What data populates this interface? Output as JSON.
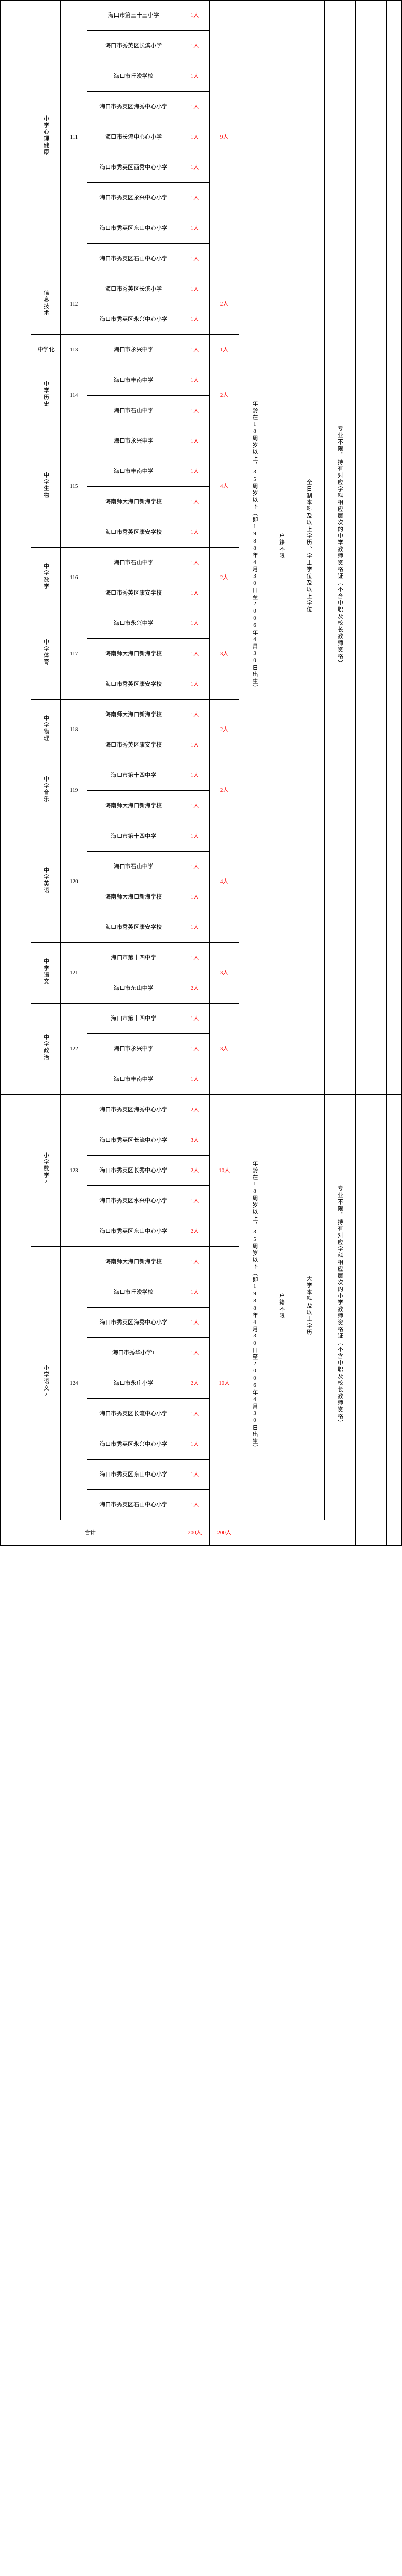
{
  "unit1": {
    "subj_xljk": {
      "label": "小学心理健康",
      "code": "111",
      "count": "9人",
      "schools": [
        {
          "name": "海口市第三十三小学",
          "n": "1人"
        },
        {
          "name": "海口市秀英区长滨小学",
          "n": "1人"
        },
        {
          "name": "海口市丘浚学校",
          "n": "1人"
        },
        {
          "name": "海口市秀英区海秀中心小学",
          "n": "1人"
        },
        {
          "name": "海口市长流中心心小学",
          "n": "1人"
        },
        {
          "name": "海口市秀英区西秀中心小学",
          "n": "1人"
        },
        {
          "name": "海口市秀英区永兴中心小学",
          "n": "1人"
        },
        {
          "name": "海口市秀英区东山中心小学",
          "n": "1人"
        },
        {
          "name": "海口市秀英区石山中心小学",
          "n": "1人"
        }
      ]
    },
    "subj_xxjs": {
      "label": "信息技术",
      "code": "112",
      "count": "2人",
      "schools": [
        {
          "name": "海口市秀英区长滨小学",
          "n": "1人"
        },
        {
          "name": "海口市秀英区永兴中心小学",
          "n": "1人"
        }
      ]
    },
    "subj_zxhx": {
      "label": "中学化",
      "code": "113",
      "count": "1人",
      "schools": [
        {
          "name": "海口市永兴中学",
          "n": "1人"
        }
      ]
    },
    "subj_zxls": {
      "label": "中学历史",
      "code": "114",
      "count": "2人",
      "schools": [
        {
          "name": "海口市丰南中学",
          "n": "1人"
        },
        {
          "name": "海口市石山中学",
          "n": "1人"
        }
      ]
    },
    "subj_zxsw": {
      "label": "中学生物",
      "code": "115",
      "count": "4人",
      "schools": [
        {
          "name": "海口市永兴中学",
          "n": "1人"
        },
        {
          "name": "海口市丰南中学",
          "n": "1人"
        },
        {
          "name": "海南师大海口新海学校",
          "n": "1人"
        },
        {
          "name": "海口市秀英区康安学校",
          "n": "1人"
        }
      ]
    },
    "subj_zxsx": {
      "label": "中学数学",
      "code": "116",
      "count": "2人",
      "schools": [
        {
          "name": "海口市石山中学",
          "n": "1人"
        },
        {
          "name": "海口市秀英区康安学校",
          "n": "1人"
        }
      ]
    },
    "subj_zxty": {
      "label": "中学体育",
      "code": "117",
      "count": "3人",
      "schools": [
        {
          "name": "海口市永兴中学",
          "n": "1人"
        },
        {
          "name": "海南师大海口新海学校",
          "n": "1人"
        },
        {
          "name": "海口市秀英区康安学校",
          "n": "1人"
        }
      ]
    },
    "subj_zxwl": {
      "label": "中学物理",
      "code": "118",
      "count": "2人",
      "schools": [
        {
          "name": "海南师大海口新海学校",
          "n": "1人"
        },
        {
          "name": "海口市秀英区康安学校",
          "n": "1人"
        }
      ]
    },
    "subj_zxyy": {
      "label": "中学音乐",
      "code": "119",
      "count": "2人",
      "schools": [
        {
          "name": "海口市第十四中学",
          "n": "1人"
        },
        {
          "name": "海南师大海口新海学校",
          "n": "1人"
        }
      ]
    },
    "subj_zxen": {
      "label": "中学英语",
      "code": "120",
      "count": "4人",
      "schools": [
        {
          "name": "海口市第十四中学",
          "n": "1人"
        },
        {
          "name": "海口市石山中学",
          "n": "1人"
        },
        {
          "name": "海南师大海口新海学校",
          "n": "1人"
        },
        {
          "name": "海口市秀英区康安学校",
          "n": "1人"
        }
      ]
    },
    "subj_zxyw": {
      "label": "中学语文",
      "code": "121",
      "count": "3人",
      "schools": [
        {
          "name": "海口市第十四中学",
          "n": "1人"
        },
        {
          "name": "海口市东山中学",
          "n": "2人"
        }
      ]
    },
    "subj_zxzz": {
      "label": "中学政治",
      "code": "122",
      "count": "3人",
      "schools": [
        {
          "name": "海口市第十四中学",
          "n": "1人"
        },
        {
          "name": "海口市永兴中学",
          "n": "1人"
        },
        {
          "name": "海口市丰南中学",
          "n": "1人"
        }
      ]
    },
    "age": "年龄在18周岁以上，35周岁以下（即1988年4月30日至2006年4月30日出生）",
    "hukou": "户籍不限",
    "edu": "全日制本科及以上学历、学士学位及以上学位",
    "cert": "专业不限，持有对应学科相应层次的中学教师资格证（不含中职及校长教师资格）"
  },
  "unit2": {
    "subj_xxsx2": {
      "label": "小学数学2",
      "code": "123",
      "count": "10人",
      "schools": [
        {
          "name": "海口市秀英区海秀中心小学",
          "n": "2人"
        },
        {
          "name": "海口市秀英区长流中心小学",
          "n": "3人"
        },
        {
          "name": "海口市秀英区长秀中心小学",
          "n": "2人"
        },
        {
          "name": "海口市秀英区水兴中心小学",
          "n": "1人"
        },
        {
          "name": "海口市秀英区东山中心小学",
          "n": "2人"
        }
      ]
    },
    "subj_xxyw2": {
      "label": "小学语文2",
      "code": "124",
      "count": "10人",
      "schools": [
        {
          "name": "海南师大海口新海学校",
          "n": "1人"
        },
        {
          "name": "海口市丘浚学校",
          "n": "1人"
        },
        {
          "name": "海口市秀英区海秀中心小学",
          "n": "1人"
        },
        {
          "name": "海口市秀华小学1",
          "n": "1人"
        },
        {
          "name": "海口市永庄小学",
          "n": "2人"
        },
        {
          "name": "海口市秀英区长流中心小学",
          "n": "1人"
        },
        {
          "name": "海口市秀英区永兴中心小学",
          "n": "1人"
        },
        {
          "name": "海口市秀英区东山中心小学",
          "n": "1人"
        },
        {
          "name": "海口市秀英区石山中心小学",
          "n": "1人"
        }
      ]
    },
    "age": "年龄在18周岁以上，35周岁以下（即1988年4月30日至2006年4月30日出生）",
    "hukou": "户籍不限",
    "edu": "大学本科及以上学历",
    "cert": "专业不限，持有对应学科相应层次的小学教师资格证（不含中职及校长教师资格）"
  },
  "total": {
    "label": "合计",
    "a": "200人",
    "b": "200人"
  }
}
